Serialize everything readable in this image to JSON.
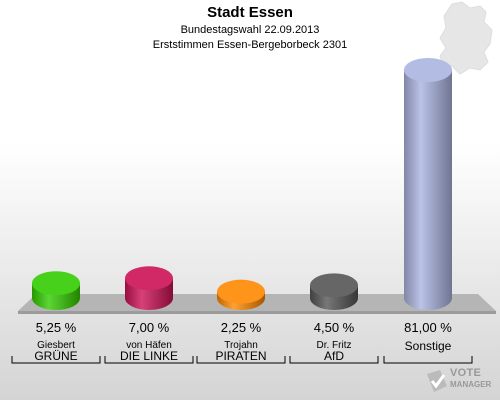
{
  "header": {
    "title": "Stadt Essen",
    "subtitle": "Bundestagswahl 22.09.2013",
    "subtitle2": "Erststimmen Essen-Bergeborbeck 2301"
  },
  "watermark": {
    "line1": "VOTE",
    "line2": "MANAGER"
  },
  "chart_data": {
    "type": "bar",
    "title": "Stadt Essen",
    "subtitle": "Bundestagswahl 22.09.2013 / Erststimmen Essen-Bergeborbeck 2301",
    "unit": "%",
    "ylim": [
      0,
      81
    ],
    "categories": [
      "GRÜNE",
      "DIE LINKE",
      "PIRATEN",
      "AfD",
      "Sonstige"
    ],
    "candidates": [
      "Giesbert",
      "von Häfen",
      "Trojahn",
      "Dr. Fritz",
      ""
    ],
    "values": [
      5.25,
      7.0,
      2.25,
      4.5,
      81.0
    ],
    "labels": [
      "5,25 %",
      "7,00 %",
      "2,25 %",
      "4,50 %",
      "81,00 %"
    ],
    "colors": [
      "#33cc00",
      "#cc1155",
      "#ff8800",
      "#555555",
      "#aab4e0"
    ]
  }
}
